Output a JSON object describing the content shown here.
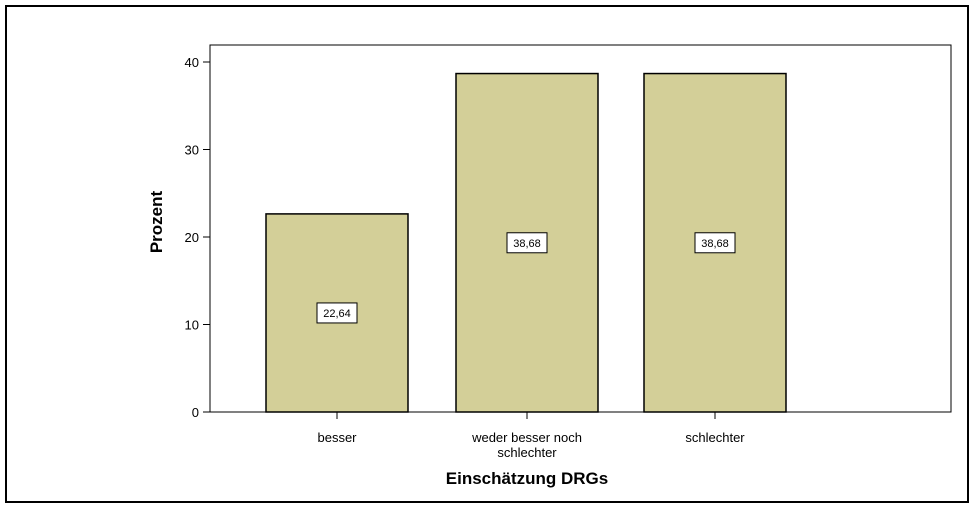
{
  "chart_data": {
    "type": "bar",
    "categories": [
      "besser",
      "weder besser noch schlechter",
      "schlechter"
    ],
    "category_lines": [
      [
        "besser"
      ],
      [
        "weder besser noch",
        "schlechter"
      ],
      [
        "schlechter"
      ]
    ],
    "values": [
      22.64,
      38.68,
      38.68
    ],
    "data_labels": [
      "22,64",
      "38,68",
      "38,68"
    ],
    "xlabel": "Einschätzung DRGs",
    "ylabel": "Prozent",
    "ylim": [
      0,
      40
    ],
    "yticks": [
      0,
      10,
      20,
      30,
      40
    ],
    "grid": false,
    "legend": "none",
    "colors": {
      "bar_fill": "#d3cf98",
      "bar_stroke": "#000000",
      "label_box": "#ffffff"
    }
  }
}
